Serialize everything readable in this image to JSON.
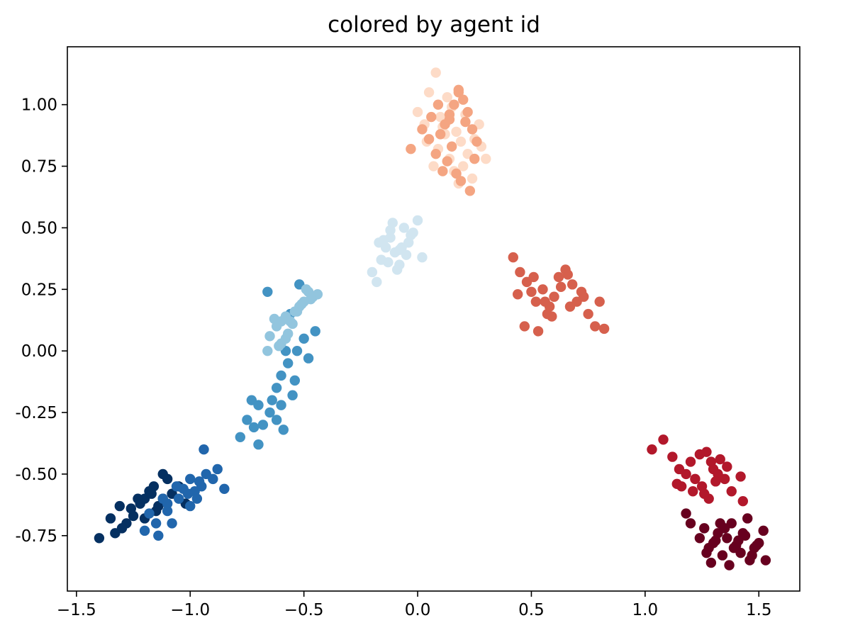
{
  "chart_data": {
    "type": "scatter",
    "title": "colored by agent id",
    "xlabel": "",
    "ylabel": "",
    "xlim": [
      -1.54,
      1.68
    ],
    "ylim": [
      -0.975,
      1.235
    ],
    "xticks": [
      -1.5,
      -1.0,
      -0.5,
      0.0,
      0.5,
      1.0,
      1.5
    ],
    "xtick_labels": [
      "−1.5",
      "−1.0",
      "−0.5",
      "0.0",
      "0.5",
      "1.0",
      "1.5"
    ],
    "yticks": [
      -0.75,
      -0.5,
      -0.25,
      0.0,
      0.25,
      0.5,
      0.75,
      1.0
    ],
    "ytick_labels": [
      "-0.75",
      "-0.50",
      "-0.25",
      "0.00",
      "0.25",
      "0.50",
      "0.75",
      "1.00"
    ],
    "grid": false,
    "colormap": "RdBu",
    "series": [
      {
        "color": "#053061",
        "x": [
          -1.4,
          -1.35,
          -1.33,
          -1.31,
          -1.28,
          -1.25,
          -1.22,
          -1.2,
          -1.18,
          -1.16,
          -1.14,
          -1.12,
          -1.1,
          -1.08,
          -1.15,
          -1.2,
          -1.23,
          -1.26,
          -1.3,
          -1.12,
          -1.05,
          -1.02,
          -1.17
        ],
        "y": [
          -0.76,
          -0.68,
          -0.74,
          -0.63,
          -0.7,
          -0.67,
          -0.62,
          -0.6,
          -0.57,
          -0.55,
          -0.63,
          -0.5,
          -0.52,
          -0.58,
          -0.65,
          -0.68,
          -0.6,
          -0.64,
          -0.72,
          -0.6,
          -0.55,
          -0.62,
          -0.58
        ]
      },
      {
        "color": "#2166ac",
        "x": [
          -1.2,
          -1.15,
          -1.1,
          -1.05,
          -1.0,
          -0.98,
          -0.95,
          -0.93,
          -0.9,
          -0.88,
          -0.85,
          -1.08,
          -1.12,
          -1.18,
          -1.03,
          -0.97,
          -0.94,
          -1.0,
          -1.06,
          -1.1,
          -1.14,
          -0.96,
          -1.01
        ],
        "y": [
          -0.73,
          -0.7,
          -0.65,
          -0.6,
          -0.63,
          -0.57,
          -0.55,
          -0.5,
          -0.52,
          -0.48,
          -0.56,
          -0.7,
          -0.6,
          -0.66,
          -0.56,
          -0.6,
          -0.4,
          -0.52,
          -0.55,
          -0.62,
          -0.75,
          -0.53,
          -0.58
        ]
      },
      {
        "color": "#4393c3",
        "x": [
          -0.78,
          -0.75,
          -0.73,
          -0.7,
          -0.68,
          -0.65,
          -0.62,
          -0.6,
          -0.57,
          -0.55,
          -0.53,
          -0.5,
          -0.48,
          -0.45,
          -0.58,
          -0.62,
          -0.6,
          -0.56,
          -0.52,
          -0.66,
          -0.7,
          -0.72,
          -0.64,
          -0.59,
          -0.54
        ],
        "y": [
          -0.35,
          -0.28,
          -0.2,
          -0.38,
          -0.3,
          -0.25,
          -0.15,
          -0.1,
          -0.05,
          -0.18,
          0.0,
          0.05,
          -0.03,
          0.08,
          0.0,
          -0.28,
          -0.22,
          0.15,
          0.27,
          0.24,
          -0.22,
          -0.31,
          -0.2,
          -0.32,
          -0.12
        ]
      },
      {
        "color": "#92c5de",
        "x": [
          -0.65,
          -0.62,
          -0.6,
          -0.58,
          -0.55,
          -0.53,
          -0.5,
          -0.48,
          -0.46,
          -0.44,
          -0.6,
          -0.57,
          -0.52,
          -0.63,
          -0.66,
          -0.58,
          -0.54,
          -0.49,
          -0.61,
          -0.56,
          -0.51,
          -0.47
        ],
        "y": [
          0.06,
          0.1,
          0.12,
          0.14,
          0.11,
          0.16,
          0.2,
          0.24,
          0.22,
          0.23,
          0.03,
          0.07,
          0.18,
          0.13,
          0.0,
          0.05,
          0.16,
          0.25,
          0.02,
          0.12,
          0.19,
          0.21
        ]
      },
      {
        "color": "#d1e5f0",
        "x": [
          -0.2,
          -0.18,
          -0.16,
          -0.14,
          -0.12,
          -0.1,
          -0.08,
          -0.06,
          -0.04,
          -0.02,
          0.0,
          0.02,
          -0.15,
          -0.11,
          -0.07,
          -0.13,
          -0.09,
          -0.05,
          -0.17,
          -0.12,
          -0.03,
          -0.08
        ],
        "y": [
          0.32,
          0.28,
          0.37,
          0.42,
          0.46,
          0.4,
          0.35,
          0.5,
          0.44,
          0.48,
          0.53,
          0.38,
          0.45,
          0.52,
          0.42,
          0.36,
          0.33,
          0.39,
          0.44,
          0.49,
          0.47,
          0.41
        ]
      },
      {
        "color": "#fddbc7",
        "x": [
          0.05,
          0.08,
          0.1,
          0.12,
          0.14,
          0.16,
          0.18,
          0.2,
          0.22,
          0.25,
          0.28,
          0.3,
          0.0,
          0.04,
          0.07,
          0.11,
          0.15,
          0.19,
          0.24,
          0.27,
          0.13,
          0.09,
          0.03,
          0.21,
          0.17
        ],
        "y": [
          1.05,
          1.13,
          0.95,
          0.88,
          0.78,
          0.73,
          0.68,
          0.75,
          0.8,
          0.86,
          0.83,
          0.78,
          0.97,
          0.85,
          0.75,
          0.91,
          0.99,
          0.85,
          0.7,
          0.92,
          1.03,
          0.82,
          0.92,
          0.96,
          0.89
        ]
      },
      {
        "color": "#f4a582",
        "x": [
          -0.03,
          0.02,
          0.06,
          0.1,
          0.12,
          0.14,
          0.16,
          0.18,
          0.2,
          0.22,
          0.24,
          0.26,
          0.08,
          0.13,
          0.17,
          0.19,
          0.23,
          0.11,
          0.15,
          0.21,
          0.25,
          0.09,
          0.05,
          0.14,
          0.18
        ],
        "y": [
          0.82,
          0.9,
          0.95,
          0.88,
          0.92,
          0.96,
          1.0,
          1.05,
          1.02,
          0.97,
          0.9,
          0.85,
          0.8,
          0.77,
          0.72,
          0.69,
          0.65,
          0.73,
          0.83,
          0.93,
          0.78,
          1.0,
          0.86,
          0.94,
          1.06
        ]
      },
      {
        "color": "#d6604d",
        "x": [
          0.42,
          0.45,
          0.48,
          0.5,
          0.52,
          0.55,
          0.58,
          0.6,
          0.62,
          0.65,
          0.68,
          0.7,
          0.72,
          0.75,
          0.78,
          0.8,
          0.82,
          0.47,
          0.53,
          0.57,
          0.63,
          0.67,
          0.51,
          0.59,
          0.44,
          0.56,
          0.66,
          0.73
        ],
        "y": [
          0.38,
          0.32,
          0.28,
          0.24,
          0.2,
          0.25,
          0.18,
          0.22,
          0.3,
          0.33,
          0.27,
          0.2,
          0.24,
          0.15,
          0.1,
          0.2,
          0.09,
          0.1,
          0.08,
          0.15,
          0.26,
          0.18,
          0.3,
          0.14,
          0.23,
          0.2,
          0.31,
          0.22
        ]
      },
      {
        "color": "#b2182b",
        "x": [
          1.03,
          1.08,
          1.12,
          1.15,
          1.18,
          1.2,
          1.22,
          1.25,
          1.28,
          1.3,
          1.33,
          1.35,
          1.38,
          1.42,
          1.43,
          1.16,
          1.24,
          1.27,
          1.32,
          1.21,
          1.29,
          1.14,
          1.26,
          1.36,
          1.31
        ],
        "y": [
          -0.4,
          -0.36,
          -0.43,
          -0.48,
          -0.5,
          -0.45,
          -0.52,
          -0.55,
          -0.6,
          -0.48,
          -0.44,
          -0.52,
          -0.57,
          -0.51,
          -0.61,
          -0.55,
          -0.42,
          -0.41,
          -0.5,
          -0.57,
          -0.45,
          -0.54,
          -0.58,
          -0.47,
          -0.53
        ]
      },
      {
        "color": "#67001f",
        "x": [
          1.18,
          1.2,
          1.24,
          1.26,
          1.28,
          1.3,
          1.32,
          1.34,
          1.36,
          1.38,
          1.4,
          1.42,
          1.44,
          1.46,
          1.48,
          1.5,
          1.52,
          1.53,
          1.29,
          1.33,
          1.37,
          1.41,
          1.45,
          1.27,
          1.35,
          1.39,
          1.43,
          1.31,
          1.47,
          1.49
        ],
        "y": [
          -0.66,
          -0.7,
          -0.76,
          -0.72,
          -0.8,
          -0.78,
          -0.74,
          -0.83,
          -0.76,
          -0.7,
          -0.79,
          -0.82,
          -0.75,
          -0.85,
          -0.8,
          -0.78,
          -0.73,
          -0.85,
          -0.86,
          -0.7,
          -0.87,
          -0.77,
          -0.68,
          -0.82,
          -0.72,
          -0.8,
          -0.74,
          -0.77,
          -0.83,
          -0.79
        ]
      }
    ]
  }
}
